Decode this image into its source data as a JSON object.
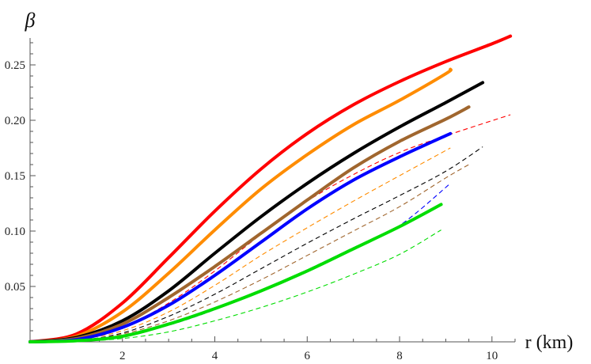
{
  "chart_data": {
    "type": "line",
    "title": "",
    "xlabel": "r (km)",
    "ylabel": "β",
    "xlim": [
      0,
      10.5
    ],
    "ylim": [
      0,
      0.28
    ],
    "x_ticks": [
      2,
      4,
      6,
      8,
      10
    ],
    "y_ticks": [
      0.05,
      0.1,
      0.15,
      0.2,
      0.25
    ],
    "x_tick_labels": [
      "2",
      "4",
      "6",
      "8",
      "10"
    ],
    "y_tick_labels": [
      "0.05",
      "0.10",
      "0.15",
      "0.20",
      "0.25"
    ],
    "grid": false,
    "legend": "none",
    "series": [
      {
        "color": "#ff0000",
        "style": "solid",
        "x": [
          0,
          1,
          2,
          3,
          4,
          5,
          6,
          7,
          8,
          9,
          10,
          10.4
        ],
        "values": [
          0,
          0.007,
          0.035,
          0.076,
          0.118,
          0.156,
          0.188,
          0.214,
          0.235,
          0.253,
          0.269,
          0.276
        ]
      },
      {
        "color": "#ff8c00",
        "style": "solid",
        "x": [
          0,
          1,
          2,
          3,
          4,
          5,
          6,
          7,
          8,
          9,
          9.1
        ],
        "values": [
          0,
          0.005,
          0.027,
          0.062,
          0.101,
          0.138,
          0.169,
          0.196,
          0.218,
          0.242,
          0.246
        ]
      },
      {
        "color": "#000000",
        "style": "solid",
        "x": [
          0,
          1,
          2,
          3,
          4,
          5,
          6,
          7,
          8,
          9,
          9.8
        ],
        "values": [
          0,
          0.004,
          0.019,
          0.046,
          0.08,
          0.113,
          0.143,
          0.17,
          0.194,
          0.216,
          0.234
        ]
      },
      {
        "color": "#a0662e",
        "style": "solid",
        "x": [
          0,
          1,
          2,
          3,
          4,
          5,
          6,
          7,
          8,
          9,
          9.5
        ],
        "values": [
          0,
          0.003,
          0.016,
          0.04,
          0.068,
          0.098,
          0.128,
          0.157,
          0.181,
          0.201,
          0.212
        ]
      },
      {
        "color": "#0000ff",
        "style": "solid",
        "x": [
          0,
          1,
          2,
          3,
          4,
          5,
          6,
          7,
          8,
          9.1
        ],
        "values": [
          0,
          0.002,
          0.013,
          0.033,
          0.06,
          0.09,
          0.12,
          0.146,
          0.167,
          0.188
        ]
      },
      {
        "color": "#00dd00",
        "style": "solid",
        "x": [
          0,
          1,
          2,
          3,
          4,
          5,
          6,
          7,
          8,
          8.9
        ],
        "values": [
          0,
          0.001,
          0.005,
          0.016,
          0.03,
          0.046,
          0.064,
          0.084,
          0.104,
          0.124
        ]
      },
      {
        "color": "#ff0000",
        "style": "dashed",
        "x": [
          0,
          1,
          2,
          3,
          4,
          5,
          6,
          7,
          8,
          9,
          10.4
        ],
        "values": [
          0,
          0.002,
          0.013,
          0.035,
          0.064,
          0.097,
          0.127,
          0.151,
          0.171,
          0.186,
          0.205
        ]
      },
      {
        "color": "#ff8c00",
        "style": "dashed",
        "x": [
          0,
          1,
          2,
          3,
          4,
          5,
          6,
          7,
          8,
          9.1
        ],
        "values": [
          0,
          0.002,
          0.01,
          0.027,
          0.051,
          0.078,
          0.103,
          0.127,
          0.15,
          0.175
        ]
      },
      {
        "color": "#000000",
        "style": "dashed",
        "x": [
          0,
          1,
          2,
          3,
          4,
          5,
          6,
          7,
          8,
          9,
          9.8
        ],
        "values": [
          0,
          0.001,
          0.008,
          0.023,
          0.043,
          0.066,
          0.089,
          0.111,
          0.132,
          0.154,
          0.176
        ]
      },
      {
        "color": "#a0662e",
        "style": "dashed",
        "x": [
          0,
          1,
          2,
          3,
          4,
          5,
          6,
          7,
          8,
          9,
          9.5
        ],
        "values": [
          0,
          0.001,
          0.007,
          0.019,
          0.036,
          0.056,
          0.078,
          0.1,
          0.122,
          0.148,
          0.16
        ]
      },
      {
        "color": "#0000ff",
        "style": "dashed",
        "x": [
          0,
          1,
          2,
          3,
          4,
          5,
          6,
          7,
          8,
          9.1
        ],
        "values": [
          0,
          0.001,
          0.005,
          0.015,
          0.029,
          0.046,
          0.065,
          0.085,
          0.105,
          0.143
        ]
      },
      {
        "color": "#00dd00",
        "style": "dashed",
        "x": [
          0,
          1,
          2,
          3,
          4,
          5,
          6,
          7,
          8,
          8.9
        ],
        "values": [
          0,
          0.0005,
          0.003,
          0.009,
          0.019,
          0.031,
          0.045,
          0.061,
          0.079,
          0.101
        ]
      }
    ]
  }
}
